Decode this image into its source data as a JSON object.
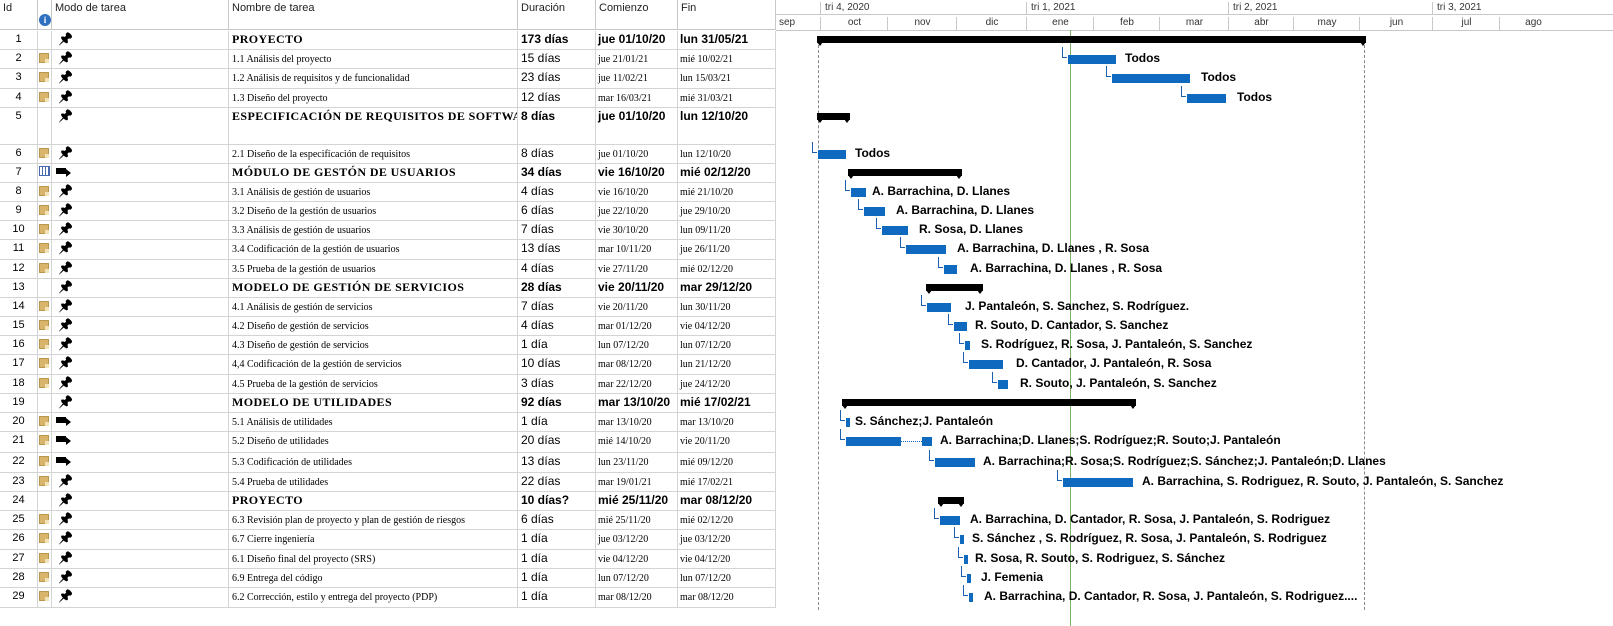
{
  "columns": {
    "id": "Id",
    "mode": "Modo de tarea",
    "name": "Nombre de tarea",
    "duration": "Duración",
    "start": "Comienzo",
    "finish": "Fin"
  },
  "timescale": {
    "quarters": [
      {
        "label": "tri 4, 2020"
      },
      {
        "label": "tri 1, 2021"
      },
      {
        "label": "tri 2, 2021"
      },
      {
        "label": "tri 3, 2021"
      }
    ],
    "months": [
      "sep",
      "oct",
      "nov",
      "dic",
      "ene",
      "feb",
      "mar",
      "abr",
      "may",
      "jun",
      "jul",
      "ago"
    ]
  },
  "rows": [
    {
      "id": "1",
      "icon": "pin",
      "note": false,
      "bold": true,
      "name": "PROYECTO",
      "duration": "173 días",
      "start": "jue 01/10/20",
      "finish": "lun 31/05/21"
    },
    {
      "id": "2",
      "icon": "pin",
      "note": true,
      "name": "1.1 Análisis del proyecto",
      "duration": "15 días",
      "start": "jue 21/01/21",
      "finish": "mié 10/02/21"
    },
    {
      "id": "3",
      "icon": "pin",
      "note": true,
      "name": "1.2 Análisis de requisitos y de funcionalidad",
      "duration": "23 días",
      "start": "jue 11/02/21",
      "finish": "lun 15/03/21"
    },
    {
      "id": "4",
      "icon": "pin",
      "note": true,
      "name": "1.3 Diseño del proyecto",
      "duration": "12 días",
      "start": "mar 16/03/21",
      "finish": "mié 31/03/21"
    },
    {
      "id": "5",
      "icon": "pin",
      "note": false,
      "bold": true,
      "tall": true,
      "name": "ESPECIFICACIÓN DE REQUISITOS DE SOFTWARE",
      "duration": "8 días",
      "start": "jue 01/10/20",
      "finish": "lun 12/10/20"
    },
    {
      "id": "6",
      "icon": "pin",
      "note": true,
      "name": "2.1 Diseño de la especificación de requisitos",
      "duration": "8 días",
      "start": "jue 01/10/20",
      "finish": "lun 12/10/20"
    },
    {
      "id": "7",
      "icon": "auto",
      "cal": true,
      "bold": true,
      "name": "MÓDULO DE GESTÓN DE USUARIOS",
      "duration": "34 días",
      "start": "vie 16/10/20",
      "finish": "mié 02/12/20"
    },
    {
      "id": "8",
      "icon": "pin",
      "note": true,
      "name": "3.1 Análisis de gestión de usuarios",
      "duration": "4 días",
      "start": "vie 16/10/20",
      "finish": "mié 21/10/20"
    },
    {
      "id": "9",
      "icon": "pin",
      "note": true,
      "name": "3.2 Diseño de la gestión de usuarios",
      "duration": "6 días",
      "start": "jue 22/10/20",
      "finish": "jue 29/10/20"
    },
    {
      "id": "10",
      "icon": "pin",
      "note": true,
      "name": "3.3 Análisis de gestión de usuarios",
      "duration": "7 días",
      "start": "vie 30/10/20",
      "finish": "lun 09/11/20"
    },
    {
      "id": "11",
      "icon": "pin",
      "note": true,
      "name": "3.4 Codificación de la gestión de usuarios",
      "duration": "13 días",
      "start": "mar 10/11/20",
      "finish": "jue 26/11/20"
    },
    {
      "id": "12",
      "icon": "pin",
      "note": true,
      "name": "3.5 Prueba de la gestión de usuarios",
      "duration": "4 días",
      "start": "vie 27/11/20",
      "finish": "mié 02/12/20"
    },
    {
      "id": "13",
      "icon": "pin",
      "note": false,
      "bold": true,
      "name": "MODELO DE GESTIÓN DE SERVICIOS",
      "duration": "28 días",
      "start": "vie 20/11/20",
      "finish": "mar 29/12/20"
    },
    {
      "id": "14",
      "icon": "pin",
      "note": true,
      "name": "4.1 Análisis de gestión de servicios",
      "duration": "7 días",
      "start": "vie 20/11/20",
      "finish": "lun 30/11/20"
    },
    {
      "id": "15",
      "icon": "pin",
      "note": true,
      "name": "4.2 Diseño de gestión de servicios",
      "duration": "4 días",
      "start": "mar 01/12/20",
      "finish": "vie 04/12/20"
    },
    {
      "id": "16",
      "icon": "pin",
      "note": true,
      "name": "4.3 Diseño de gestión de servicios",
      "duration": "1 día",
      "start": "lun 07/12/20",
      "finish": "lun 07/12/20"
    },
    {
      "id": "17",
      "icon": "pin",
      "note": true,
      "name": "4,4 Codificación de la gestión de servicios",
      "duration": "10 días",
      "start": "mar 08/12/20",
      "finish": "lun 21/12/20"
    },
    {
      "id": "18",
      "icon": "pin",
      "note": true,
      "name": "4.5 Prueba de la gestión de servicios",
      "duration": "3 días",
      "start": "mar 22/12/20",
      "finish": "jue 24/12/20"
    },
    {
      "id": "19",
      "icon": "pin",
      "note": false,
      "bold": true,
      "name": "MODELO DE UTILIDADES",
      "duration": "92 días",
      "start": "mar 13/10/20",
      "finish": "mié 17/02/21"
    },
    {
      "id": "20",
      "icon": "auto",
      "note": true,
      "name": "5.1 Análisis de utilidades",
      "duration": "1 día",
      "start": "mar 13/10/20",
      "finish": "mar 13/10/20"
    },
    {
      "id": "21",
      "icon": "auto",
      "note": true,
      "name": "5.2 Diseño de utilidades",
      "duration": "20 días",
      "start": "mié 14/10/20",
      "finish": "vie 20/11/20"
    },
    {
      "id": "22",
      "icon": "auto",
      "note": true,
      "name": "5.3 Codificación de utilidades",
      "duration": "13 días",
      "start": "lun 23/11/20",
      "finish": "mié 09/12/20"
    },
    {
      "id": "23",
      "icon": "pin",
      "note": true,
      "name": "5.4 Prueba de utilidades",
      "duration": "22 días",
      "start": "mar 19/01/21",
      "finish": "mié 17/02/21"
    },
    {
      "id": "24",
      "icon": "pin",
      "note": false,
      "bold": true,
      "name": "PROYECTO",
      "duration": "10 días?",
      "start": "mié 25/11/20",
      "finish": "mar 08/12/20"
    },
    {
      "id": "25",
      "icon": "pin",
      "note": true,
      "name": "6.3 Revisión plan de proyecto y plan de gestión de riesgos",
      "duration": "6 días",
      "start": "mié 25/11/20",
      "finish": "mié 02/12/20"
    },
    {
      "id": "26",
      "icon": "pin",
      "note": true,
      "name": "6.7 Cierre ingeniería",
      "duration": "1 día",
      "start": "jue 03/12/20",
      "finish": "jue 03/12/20"
    },
    {
      "id": "27",
      "icon": "pin",
      "note": true,
      "name": "6.1 Diseño final del proyecto (SRS)",
      "duration": "1 día",
      "start": "vie 04/12/20",
      "finish": "vie 04/12/20"
    },
    {
      "id": "28",
      "icon": "pin",
      "note": true,
      "name": "6.9 Entrega del código",
      "duration": "1 día",
      "start": "lun 07/12/20",
      "finish": "lun 07/12/20"
    },
    {
      "id": "29",
      "icon": "pin",
      "note": true,
      "name": "6.2 Corrección, estilo y entrega del proyecto (PDP)",
      "duration": "1 día",
      "start": "mar 08/12/20",
      "finish": "mar 08/12/20"
    }
  ],
  "gantt_labels": {
    "2": "Todos",
    "3": "Todos",
    "4": "Todos",
    "6": "Todos",
    "8": "A. Barrachina, D. Llanes",
    "9": "A. Barrachina, D. Llanes",
    "10": "R. Sosa, D. Llanes",
    "11": "A. Barrachina, D. Llanes , R. Sosa",
    "12": "A. Barrachina, D. Llanes , R. Sosa",
    "14": "J. Pantaleón, S. Sanchez, S. Rodríguez.",
    "15": "R. Souto, D. Cantador, S. Sanchez",
    "16": "S. Rodríguez, R. Sosa, J. Pantaleón, S. Sanchez",
    "17": "D. Cantador, J. Pantaleón, R. Sosa",
    "18": "R. Souto, J. Pantaleón, S. Sanchez",
    "20": "S. Sánchez;J. Pantaleón",
    "21": "A. Barrachina;D. Llanes;S. Rodríguez;R. Souto;J. Pantaleón",
    "22": "A. Barrachina;R. Sosa;S. Rodríguez;S. Sánchez;J. Pantaleón;D. Llanes",
    "23": "A. Barrachina, S. Rodriguez, R. Souto, J. Pantaleón, S. Sanchez",
    "25": "A. Barrachina, D. Cantador, R. Sosa, J. Pantaleón, S. Rodriguez",
    "26": "S. Sánchez , S. Rodríguez, R. Sosa, J. Pantaleón, S. Rodriguez",
    "27": "R. Sosa, R. Souto, S. Rodriguez, S. Sánchez",
    "28": "J. Femenia",
    "29": "A. Barrachina, D. Cantador, R. Sosa, J. Pantaleón, S. Rodriguez...."
  },
  "colors": {
    "bar": "#0f6abf",
    "summary": "#000000",
    "today": "#7ab267",
    "note": "#d8b56a"
  }
}
